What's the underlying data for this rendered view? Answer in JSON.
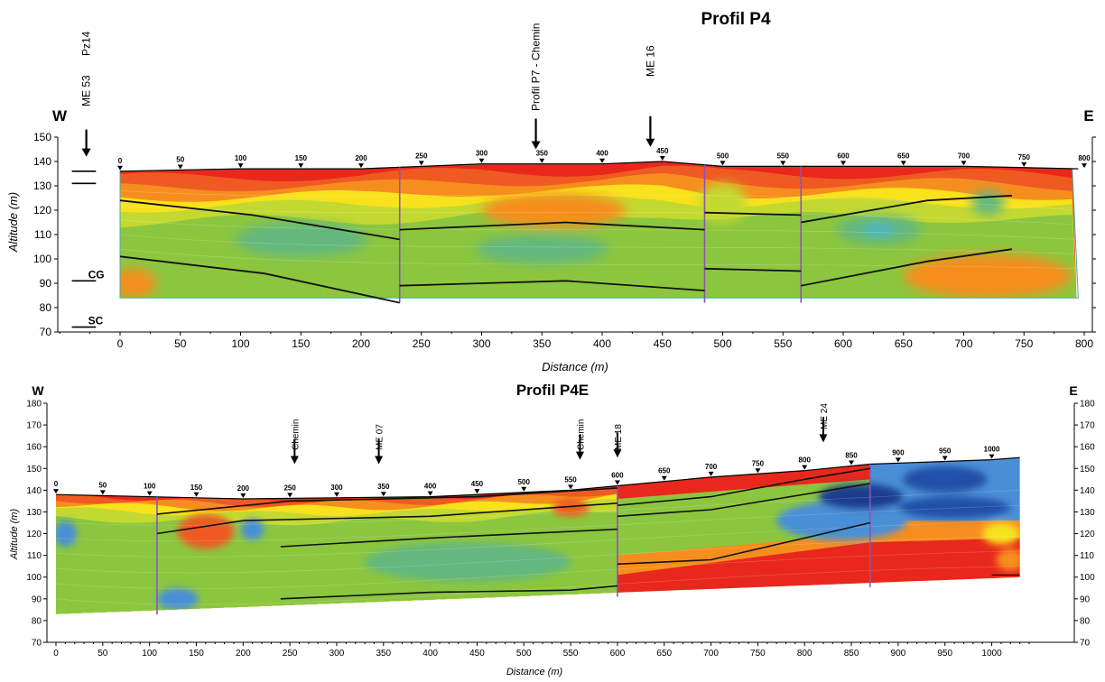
{
  "colors": {
    "red": "#e8281c",
    "orange_red": "#ef5a22",
    "orange": "#f68e1f",
    "yellow": "#f8e21c",
    "yellow_green": "#c3d931",
    "green": "#8cc63f",
    "teal_green": "#63b77f",
    "cyan": "#37b6d9",
    "light_blue": "#4a8fd6",
    "blue": "#2350a8",
    "dark_blue": "#1d3d8f",
    "purple_line": "#8a55b8",
    "interface_line": "#111111"
  },
  "chart_data": [
    {
      "type": "heatmap",
      "title": "Profil P4",
      "side_labels": {
        "left": "W",
        "right": "E"
      },
      "xlabel": "Distance (m)",
      "ylabel": "Altitude (m)",
      "xlim": [
        -55,
        800
      ],
      "ylim": [
        70,
        150
      ],
      "x_ticks": [
        0,
        50,
        100,
        150,
        200,
        250,
        300,
        350,
        400,
        450,
        500,
        550,
        600,
        650,
        700,
        750,
        800
      ],
      "y_ticks": [
        70,
        80,
        90,
        100,
        110,
        120,
        130,
        140,
        150
      ],
      "electrode_markers": [
        0,
        50,
        100,
        150,
        200,
        250,
        300,
        350,
        400,
        450,
        500,
        550,
        600,
        650,
        700,
        750,
        800
      ],
      "topography": [
        [
          0,
          136
        ],
        [
          100,
          137
        ],
        [
          200,
          137
        ],
        [
          300,
          139
        ],
        [
          400,
          139
        ],
        [
          450,
          140
        ],
        [
          500,
          138
        ],
        [
          600,
          138
        ],
        [
          700,
          138
        ],
        [
          795,
          137
        ]
      ],
      "bottom": 84,
      "annotations": [
        {
          "text": "Pz14",
          "x": -28
        },
        {
          "text": "ME 53",
          "x": -28,
          "arrow": true,
          "arrow_to": 142
        },
        {
          "text": "Profil P7 - Chemin",
          "x": 345,
          "arrow": true,
          "arrow_to": 145
        },
        {
          "text": "ME 16",
          "x": 440,
          "arrow": true,
          "arrow_to": 146
        }
      ],
      "well_levels": [
        {
          "y": 136,
          "label": ""
        },
        {
          "y": 131,
          "label": ""
        },
        {
          "y": 91,
          "label": "CG"
        },
        {
          "y": 72,
          "label": "SC"
        }
      ],
      "vertical_lines": [
        232,
        485,
        565
      ],
      "interfaces": [
        [
          [
            0,
            124
          ],
          [
            110,
            118
          ],
          [
            232,
            108
          ]
        ],
        [
          [
            232,
            112
          ],
          [
            370,
            115
          ],
          [
            485,
            112
          ]
        ],
        [
          [
            485,
            119
          ],
          [
            565,
            118
          ]
        ],
        [
          [
            565,
            115
          ],
          [
            670,
            124
          ],
          [
            740,
            126
          ]
        ],
        [
          [
            0,
            101
          ],
          [
            120,
            94
          ],
          [
            232,
            82
          ]
        ],
        [
          [
            232,
            89
          ],
          [
            370,
            91
          ],
          [
            485,
            87
          ]
        ],
        [
          [
            485,
            96
          ],
          [
            565,
            95
          ]
        ],
        [
          [
            565,
            89
          ],
          [
            670,
            99
          ],
          [
            740,
            104
          ]
        ]
      ],
      "anomalies": [
        {
          "x": 360,
          "y": 120,
          "rx": 60,
          "ry": 7,
          "color": "orange"
        },
        {
          "x": 150,
          "y": 108,
          "rx": 55,
          "ry": 7,
          "color": "teal_green"
        },
        {
          "x": 350,
          "y": 104,
          "rx": 55,
          "ry": 6,
          "color": "teal_green"
        },
        {
          "x": 630,
          "y": 112,
          "rx": 35,
          "ry": 6,
          "color": "teal_green"
        },
        {
          "x": 630,
          "y": 112,
          "rx": 12,
          "ry": 2,
          "color": "cyan"
        },
        {
          "x": 720,
          "y": 123,
          "rx": 14,
          "ry": 5,
          "color": "teal_green"
        },
        {
          "x": 720,
          "y": 93,
          "rx": 70,
          "ry": 9,
          "color": "orange"
        },
        {
          "x": 10,
          "y": 90,
          "rx": 20,
          "ry": 6,
          "color": "orange"
        },
        {
          "x": 500,
          "y": 123,
          "rx": 20,
          "ry": 8,
          "color": "yellow_green"
        }
      ]
    },
    {
      "type": "heatmap",
      "title": "Profil P4E",
      "side_labels": {
        "left": "W",
        "right": "E"
      },
      "xlabel": "Distance (m)",
      "ylabel": "Altitude (m)",
      "xlim": [
        0,
        1040
      ],
      "ylim": [
        70,
        180
      ],
      "x_ticks": [
        0,
        50,
        100,
        150,
        200,
        250,
        300,
        350,
        400,
        450,
        500,
        550,
        600,
        650,
        700,
        750,
        800,
        850,
        900,
        950,
        1000
      ],
      "y_ticks": [
        70,
        80,
        90,
        100,
        110,
        120,
        130,
        140,
        150,
        160,
        170,
        180
      ],
      "electrode_markers": [
        0,
        50,
        100,
        150,
        200,
        250,
        300,
        350,
        400,
        450,
        500,
        550,
        600,
        650,
        700,
        750,
        800,
        850,
        900,
        950,
        1000
      ],
      "topography": [
        [
          0,
          138
        ],
        [
          200,
          136
        ],
        [
          400,
          137
        ],
        [
          550,
          140
        ],
        [
          600,
          142
        ],
        [
          700,
          146
        ],
        [
          800,
          149
        ],
        [
          870,
          152
        ],
        [
          1000,
          154
        ],
        [
          1030,
          155
        ]
      ],
      "bottom_line": [
        [
          0,
          83
        ],
        [
          1030,
          100
        ]
      ],
      "annotations": [
        {
          "text": "Chemin",
          "x": 255,
          "arrow": true,
          "arrow_to": 152
        },
        {
          "text": "ME 07",
          "x": 345,
          "arrow": true,
          "arrow_to": 152
        },
        {
          "text": "Chemin",
          "x": 560,
          "arrow": true,
          "arrow_to": 154
        },
        {
          "text": "ME 18",
          "x": 600,
          "arrow": true,
          "arrow_to": 155
        },
        {
          "text": "ME 24",
          "x": 820,
          "arrow": true,
          "arrow_to": 162
        }
      ],
      "vertical_lines": [
        108,
        600,
        870
      ],
      "interfaces": [
        [
          [
            108,
            129
          ],
          [
            250,
            135
          ],
          [
            450,
            137
          ],
          [
            600,
            141
          ]
        ],
        [
          [
            108,
            120
          ],
          [
            200,
            126
          ],
          [
            400,
            128
          ],
          [
            600,
            134
          ]
        ],
        [
          [
            240,
            114
          ],
          [
            400,
            118
          ],
          [
            600,
            122
          ]
        ],
        [
          [
            240,
            90
          ],
          [
            400,
            93
          ],
          [
            550,
            94
          ],
          [
            600,
            96
          ]
        ],
        [
          [
            600,
            133
          ],
          [
            700,
            137
          ],
          [
            800,
            145
          ],
          [
            870,
            150
          ]
        ],
        [
          [
            600,
            128
          ],
          [
            700,
            131
          ],
          [
            870,
            143
          ]
        ],
        [
          [
            600,
            106
          ],
          [
            700,
            108
          ],
          [
            870,
            125
          ]
        ]
      ],
      "anomalies": [
        {
          "x": 160,
          "y": 121,
          "rx": 30,
          "ry": 8,
          "color": "orange_red"
        },
        {
          "x": 210,
          "y": 122,
          "rx": 12,
          "ry": 5,
          "color": "light_blue"
        },
        {
          "x": 10,
          "y": 120,
          "rx": 12,
          "ry": 6,
          "color": "light_blue"
        },
        {
          "x": 130,
          "y": 90,
          "rx": 22,
          "ry": 5,
          "color": "light_blue"
        },
        {
          "x": 550,
          "y": 132,
          "rx": 20,
          "ry": 4,
          "color": "orange_red"
        },
        {
          "x": 440,
          "y": 107,
          "rx": 110,
          "ry": 9,
          "color": "teal_green"
        },
        {
          "x": 840,
          "y": 126,
          "rx": 70,
          "ry": 9,
          "color": "light_blue"
        },
        {
          "x": 860,
          "y": 137,
          "rx": 45,
          "ry": 6,
          "color": "dark_blue"
        },
        {
          "x": 950,
          "y": 145,
          "rx": 45,
          "ry": 6,
          "color": "blue"
        },
        {
          "x": 960,
          "y": 132,
          "rx": 60,
          "ry": 5,
          "color": "blue"
        },
        {
          "x": 1010,
          "y": 120,
          "rx": 20,
          "ry": 5,
          "color": "yellow"
        },
        {
          "x": 1020,
          "y": 108,
          "rx": 15,
          "ry": 5,
          "color": "orange"
        }
      ]
    }
  ]
}
